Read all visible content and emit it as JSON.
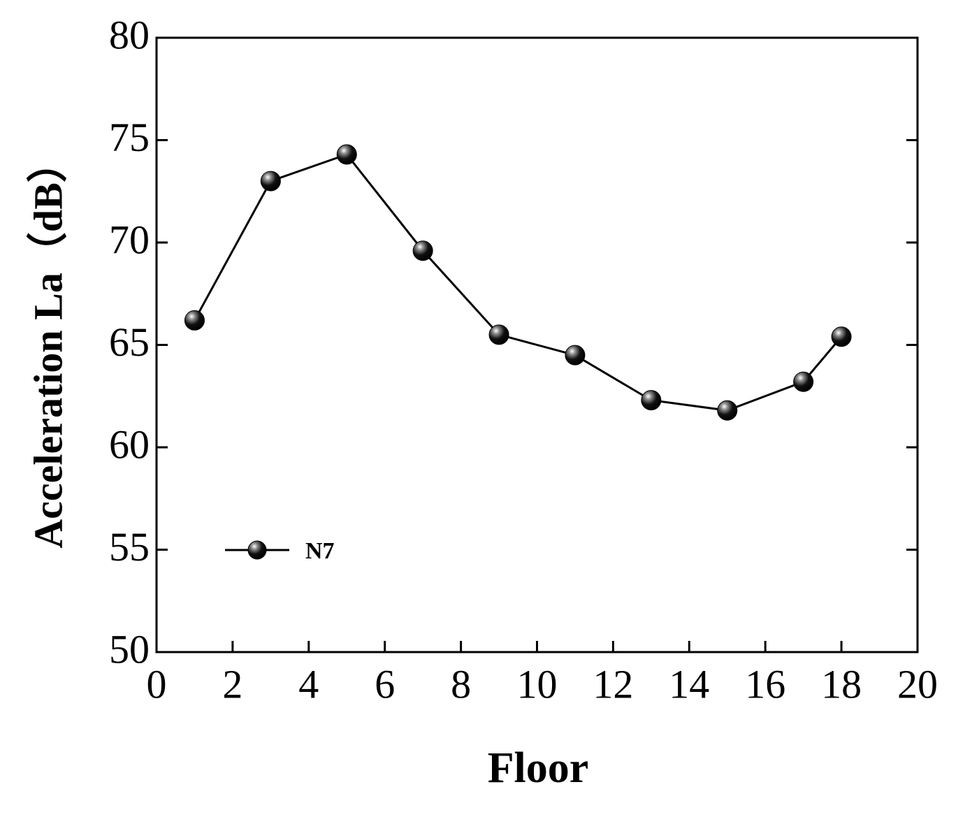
{
  "chart_data": {
    "type": "line",
    "xlabel": "Floor",
    "ylabel": "Acceleration La（dB）",
    "x": [
      1,
      3,
      5,
      7,
      9,
      11,
      13,
      15,
      17,
      18
    ],
    "series": [
      {
        "name": "N7",
        "color": "#000000",
        "values": [
          66.2,
          73.0,
          74.3,
          69.6,
          65.5,
          64.5,
          62.3,
          61.8,
          63.2,
          65.4
        ]
      }
    ],
    "xlim": [
      0,
      20
    ],
    "xticks": [
      0,
      2,
      4,
      6,
      8,
      10,
      12,
      14,
      16,
      18,
      20
    ],
    "ylim": [
      50,
      80
    ],
    "yticks": [
      50,
      55,
      60,
      65,
      70,
      75,
      80
    ],
    "grid": false,
    "legend": "lower left"
  }
}
